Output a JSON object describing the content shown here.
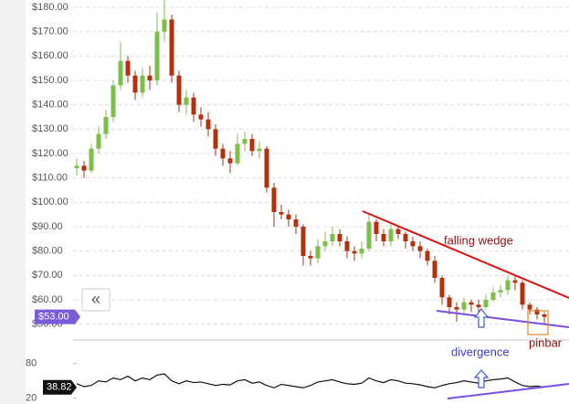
{
  "chart_data": [
    {
      "type": "candlestick",
      "open": [
        114,
        115,
        113,
        122,
        128,
        135,
        148,
        158,
        152,
        145,
        152,
        150,
        170,
        175,
        152,
        140,
        143,
        136,
        134,
        130,
        122,
        118,
        116,
        124,
        126,
        121,
        122,
        106,
        96,
        95,
        93,
        90,
        78,
        77,
        82,
        84,
        87,
        84,
        80,
        79,
        81,
        92,
        87,
        84,
        89,
        87,
        84,
        82,
        80,
        76,
        69,
        61,
        57,
        56,
        59,
        58,
        57,
        60,
        63,
        64,
        68,
        67,
        58,
        56,
        54
      ],
      "high": [
        118,
        117,
        124,
        131,
        138,
        150,
        166,
        160,
        154,
        155,
        156,
        178,
        185,
        177,
        154,
        146,
        145,
        139,
        137,
        132,
        124,
        121,
        128,
        129,
        128,
        125,
        123,
        108,
        99,
        97,
        95,
        91,
        80,
        85,
        88,
        90,
        89,
        86,
        82,
        84,
        95,
        93,
        89,
        91,
        90,
        88,
        86,
        84,
        81,
        78,
        70,
        62,
        59,
        61,
        60,
        60,
        62,
        65,
        66,
        70,
        70,
        68,
        59,
        57,
        55
      ],
      "low": [
        111,
        110,
        112,
        120,
        126,
        133,
        146,
        149,
        142,
        143,
        146,
        148,
        166,
        149,
        137,
        136,
        133,
        131,
        127,
        119,
        115,
        112,
        115,
        121,
        119,
        118,
        104,
        90,
        93,
        90,
        87,
        74,
        74,
        75,
        80,
        82,
        82,
        77,
        76,
        77,
        80,
        84,
        82,
        82,
        85,
        81,
        80,
        77,
        74,
        67,
        58,
        54,
        51,
        54,
        55,
        55,
        56,
        59,
        61,
        62,
        64,
        56,
        54,
        52,
        50
      ],
      "close": [
        115,
        113,
        122,
        128,
        135,
        148,
        158,
        152,
        145,
        152,
        150,
        170,
        175,
        152,
        140,
        143,
        136,
        134,
        130,
        122,
        118,
        116,
        124,
        126,
        121,
        122,
        106,
        96,
        95,
        93,
        90,
        78,
        77,
        82,
        84,
        87,
        84,
        80,
        79,
        81,
        92,
        87,
        84,
        89,
        87,
        84,
        82,
        80,
        76,
        69,
        61,
        57,
        56,
        59,
        58,
        57,
        60,
        63,
        64,
        68,
        67,
        58,
        56,
        54,
        53
      ],
      "up_color": "#7cc04a",
      "down_color": "#b5300f",
      "ylim": [
        45,
        183
      ],
      "yticks": [
        {
          "value": 50,
          "label": "$50.00"
        },
        {
          "value": 60,
          "label": "$60.00"
        },
        {
          "value": 70,
          "label": "$70.00"
        },
        {
          "value": 80,
          "label": "$80.00"
        },
        {
          "value": 90,
          "label": "$90.00"
        },
        {
          "value": 100,
          "label": "$100.00"
        },
        {
          "value": 110,
          "label": "$110.00"
        },
        {
          "value": 120,
          "label": "$120.00"
        },
        {
          "value": 130,
          "label": "$130.00"
        },
        {
          "value": 140,
          "label": "$140.00"
        },
        {
          "value": 150,
          "label": "$150.00"
        },
        {
          "value": 160,
          "label": "$160.00"
        },
        {
          "value": 170,
          "label": "$170.00"
        },
        {
          "value": 180,
          "label": "$180.00"
        }
      ],
      "grid": true,
      "current_price": {
        "value": 53,
        "label": "$53.00"
      },
      "annotations": [
        "falling wedge",
        "divergence",
        "pinbar"
      ],
      "nav_button": "«"
    },
    {
      "type": "line",
      "color": "#111111",
      "values": [
        45,
        40,
        42,
        50,
        48,
        55,
        52,
        58,
        50,
        55,
        52,
        60,
        62,
        50,
        45,
        50,
        47,
        48,
        45,
        42,
        44,
        43,
        50,
        52,
        46,
        48,
        42,
        38,
        44,
        42,
        40,
        38,
        42,
        48,
        50,
        52,
        48,
        45,
        44,
        46,
        55,
        50,
        47,
        52,
        50,
        46,
        45,
        43,
        40,
        38,
        42,
        45,
        47,
        50,
        48,
        46,
        50,
        52,
        53,
        55,
        48,
        42,
        40,
        41,
        38.82
      ],
      "ylim": [
        10,
        100
      ],
      "yticks": [
        80,
        20
      ]
    }
  ]
}
